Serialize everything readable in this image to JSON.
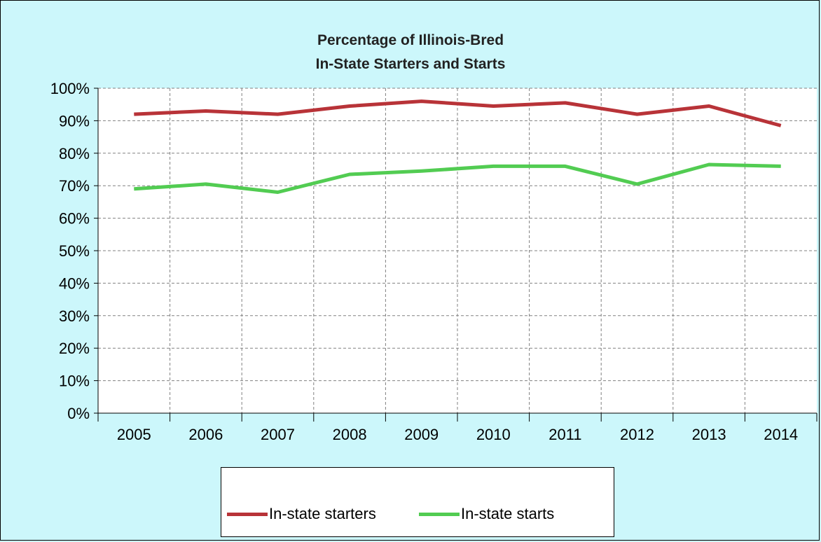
{
  "chart_data": {
    "type": "line",
    "title_line1": "Percentage of Illinois-Bred",
    "title_line2": "In-State Starters and Starts",
    "categories": [
      "2005",
      "2006",
      "2007",
      "2008",
      "2009",
      "2010",
      "2011",
      "2012",
      "2013",
      "2014"
    ],
    "y_ticks": [
      "0%",
      "10%",
      "20%",
      "30%",
      "40%",
      "50%",
      "60%",
      "70%",
      "80%",
      "90%",
      "100%"
    ],
    "ylim": [
      0,
      100
    ],
    "grid": true,
    "legend_position": "bottom",
    "series": [
      {
        "name": "In-state starters",
        "color": "#b83338",
        "values": [
          92,
          93,
          92,
          94.5,
          96,
          94.5,
          95.5,
          92,
          94.5,
          88.5
        ]
      },
      {
        "name": "In-state starts",
        "color": "#52cc52",
        "values": [
          69,
          70.5,
          68,
          73.5,
          74.5,
          76,
          76,
          70.5,
          76.5,
          76
        ]
      }
    ]
  },
  "colors": {
    "background": "#ccf7fb",
    "plot_background": "#ffffff",
    "grid": "#808080"
  }
}
